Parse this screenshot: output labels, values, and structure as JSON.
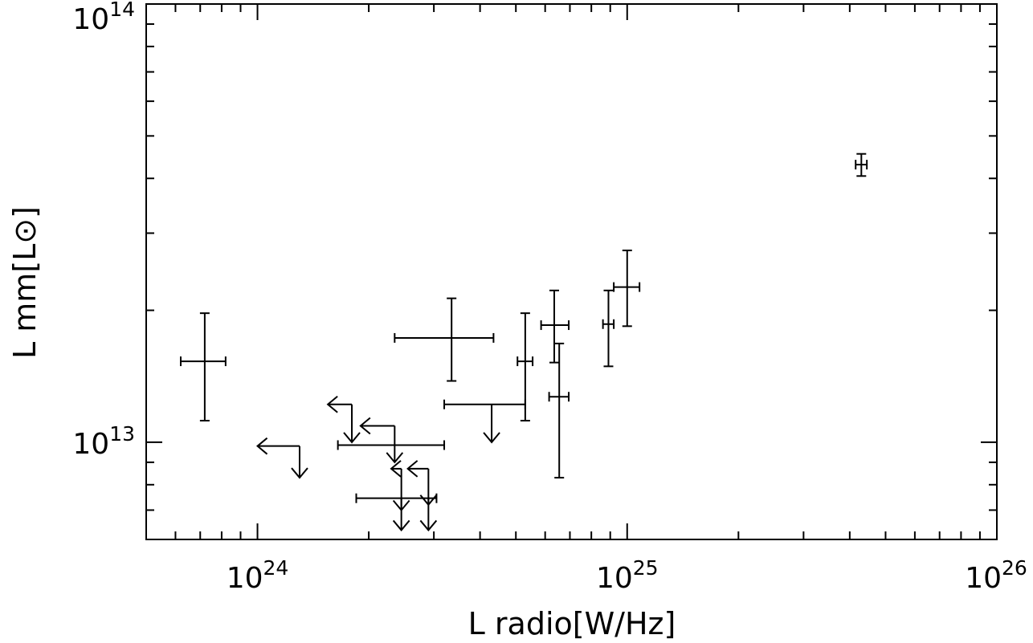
{
  "chart_data": {
    "type": "scatter",
    "title": "",
    "xlabel": "L radio[W/Hz]",
    "ylabel": "L mm[L⊙]",
    "x_scale": "log",
    "y_scale": "log",
    "xlim": [
      5e+23,
      1e+26
    ],
    "ylim": [
      6000000000000.0,
      100000000000000.0
    ],
    "x_ticks": [
      {
        "value": 1e+24,
        "base": "10",
        "exp": "24"
      },
      {
        "value": 1e+25,
        "base": "10",
        "exp": "25"
      },
      {
        "value": 1e+26,
        "base": "10",
        "exp": "26"
      }
    ],
    "y_ticks": [
      {
        "value": 10000000000000.0,
        "base": "10",
        "exp": "13"
      },
      {
        "value": 100000000000000.0,
        "base": "10",
        "exp": "14"
      }
    ],
    "grid": false,
    "legend": null,
    "colors": {
      "axes": "#000000",
      "marks": "#000000"
    },
    "detections": [
      {
        "x": 7.2e+23,
        "x_lo": 6.2e+23,
        "x_hi": 8.2e+23,
        "y": 15300000000000.0,
        "y_lo": 11200000000000.0,
        "y_hi": 19700000000000.0
      },
      {
        "x": 3.35e+24,
        "x_lo": 2.35e+24,
        "x_hi": 4.35e+24,
        "y": 17300000000000.0,
        "y_lo": 13800000000000.0,
        "y_hi": 21300000000000.0
      },
      {
        "x": 5.3e+24,
        "x_lo": 5.05e+24,
        "x_hi": 5.55e+24,
        "y": 15300000000000.0,
        "y_lo": 11200000000000.0,
        "y_hi": 19700000000000.0
      },
      {
        "x": 6.35e+24,
        "x_lo": 5.85e+24,
        "x_hi": 6.95e+24,
        "y": 18500000000000.0,
        "y_lo": 15200000000000.0,
        "y_hi": 22200000000000.0
      },
      {
        "x": 6.55e+24,
        "x_lo": 6.15e+24,
        "x_hi": 6.95e+24,
        "y": 12700000000000.0,
        "y_lo": 8300000000000.0,
        "y_hi": 16800000000000.0
      },
      {
        "x": 8.9e+24,
        "x_lo": 8.6e+24,
        "x_hi": 9.2e+24,
        "y": 18600000000000.0,
        "y_lo": 14900000000000.0,
        "y_hi": 22200000000000.0
      },
      {
        "x": 1e+25,
        "x_lo": 9.2e+24,
        "x_hi": 1.08e+25,
        "y": 22600000000000.0,
        "y_lo": 18400000000000.0,
        "y_hi": 27400000000000.0
      },
      {
        "x": 4.3e+25,
        "x_lo": 4.15e+25,
        "x_hi": 4.45e+25,
        "y": 43000000000000.0,
        "y_lo": 40500000000000.0,
        "y_hi": 45500000000000.0
      }
    ],
    "upper_limits": [
      {
        "x": 1e+24,
        "y": 9800000000000.0,
        "x_hi": 1.3e+24,
        "y_lo": 8300000000000.0
      },
      {
        "x": 1.55e+24,
        "y": 12200000000000.0,
        "x_hi": 1.8e+24,
        "y_lo": 10000000000000.0
      },
      {
        "x": 1.9e+24,
        "y": 10900000000000.0,
        "x_hi": 2.35e+24,
        "y_lo": 9000000000000.0
      },
      {
        "x": 2.3e+24,
        "y": 8700000000000.0,
        "x_hi": 2.45e+24,
        "y_lo": 7000000000000.0
      },
      {
        "x": 2.55e+24,
        "y": 8700000000000.0,
        "x_hi": 2.9e+24,
        "y_lo": 7200000000000.0
      }
    ],
    "x_limits": [
      {
        "x_lo": 1.65e+24,
        "x_hi": 3.2e+24,
        "y": 9850000000000.0
      },
      {
        "x_lo": 1.85e+24,
        "x_hi": 3.05e+24,
        "y": 7450000000000.0
      },
      {
        "x_lo": 3.2e+24,
        "x_hi": 5.3e+24,
        "y": 12200000000000.0
      }
    ],
    "y_limits": [
      {
        "x": 4.3e+24,
        "y_hi": 12200000000000.0,
        "y_lo": 10000000000000.0
      },
      {
        "x": 2.45e+24,
        "y_hi": 7450000000000.0,
        "y_lo": 6300000000000.0
      },
      {
        "x": 2.9e+24,
        "y_hi": 7450000000000.0,
        "y_lo": 6300000000000.0
      }
    ]
  }
}
